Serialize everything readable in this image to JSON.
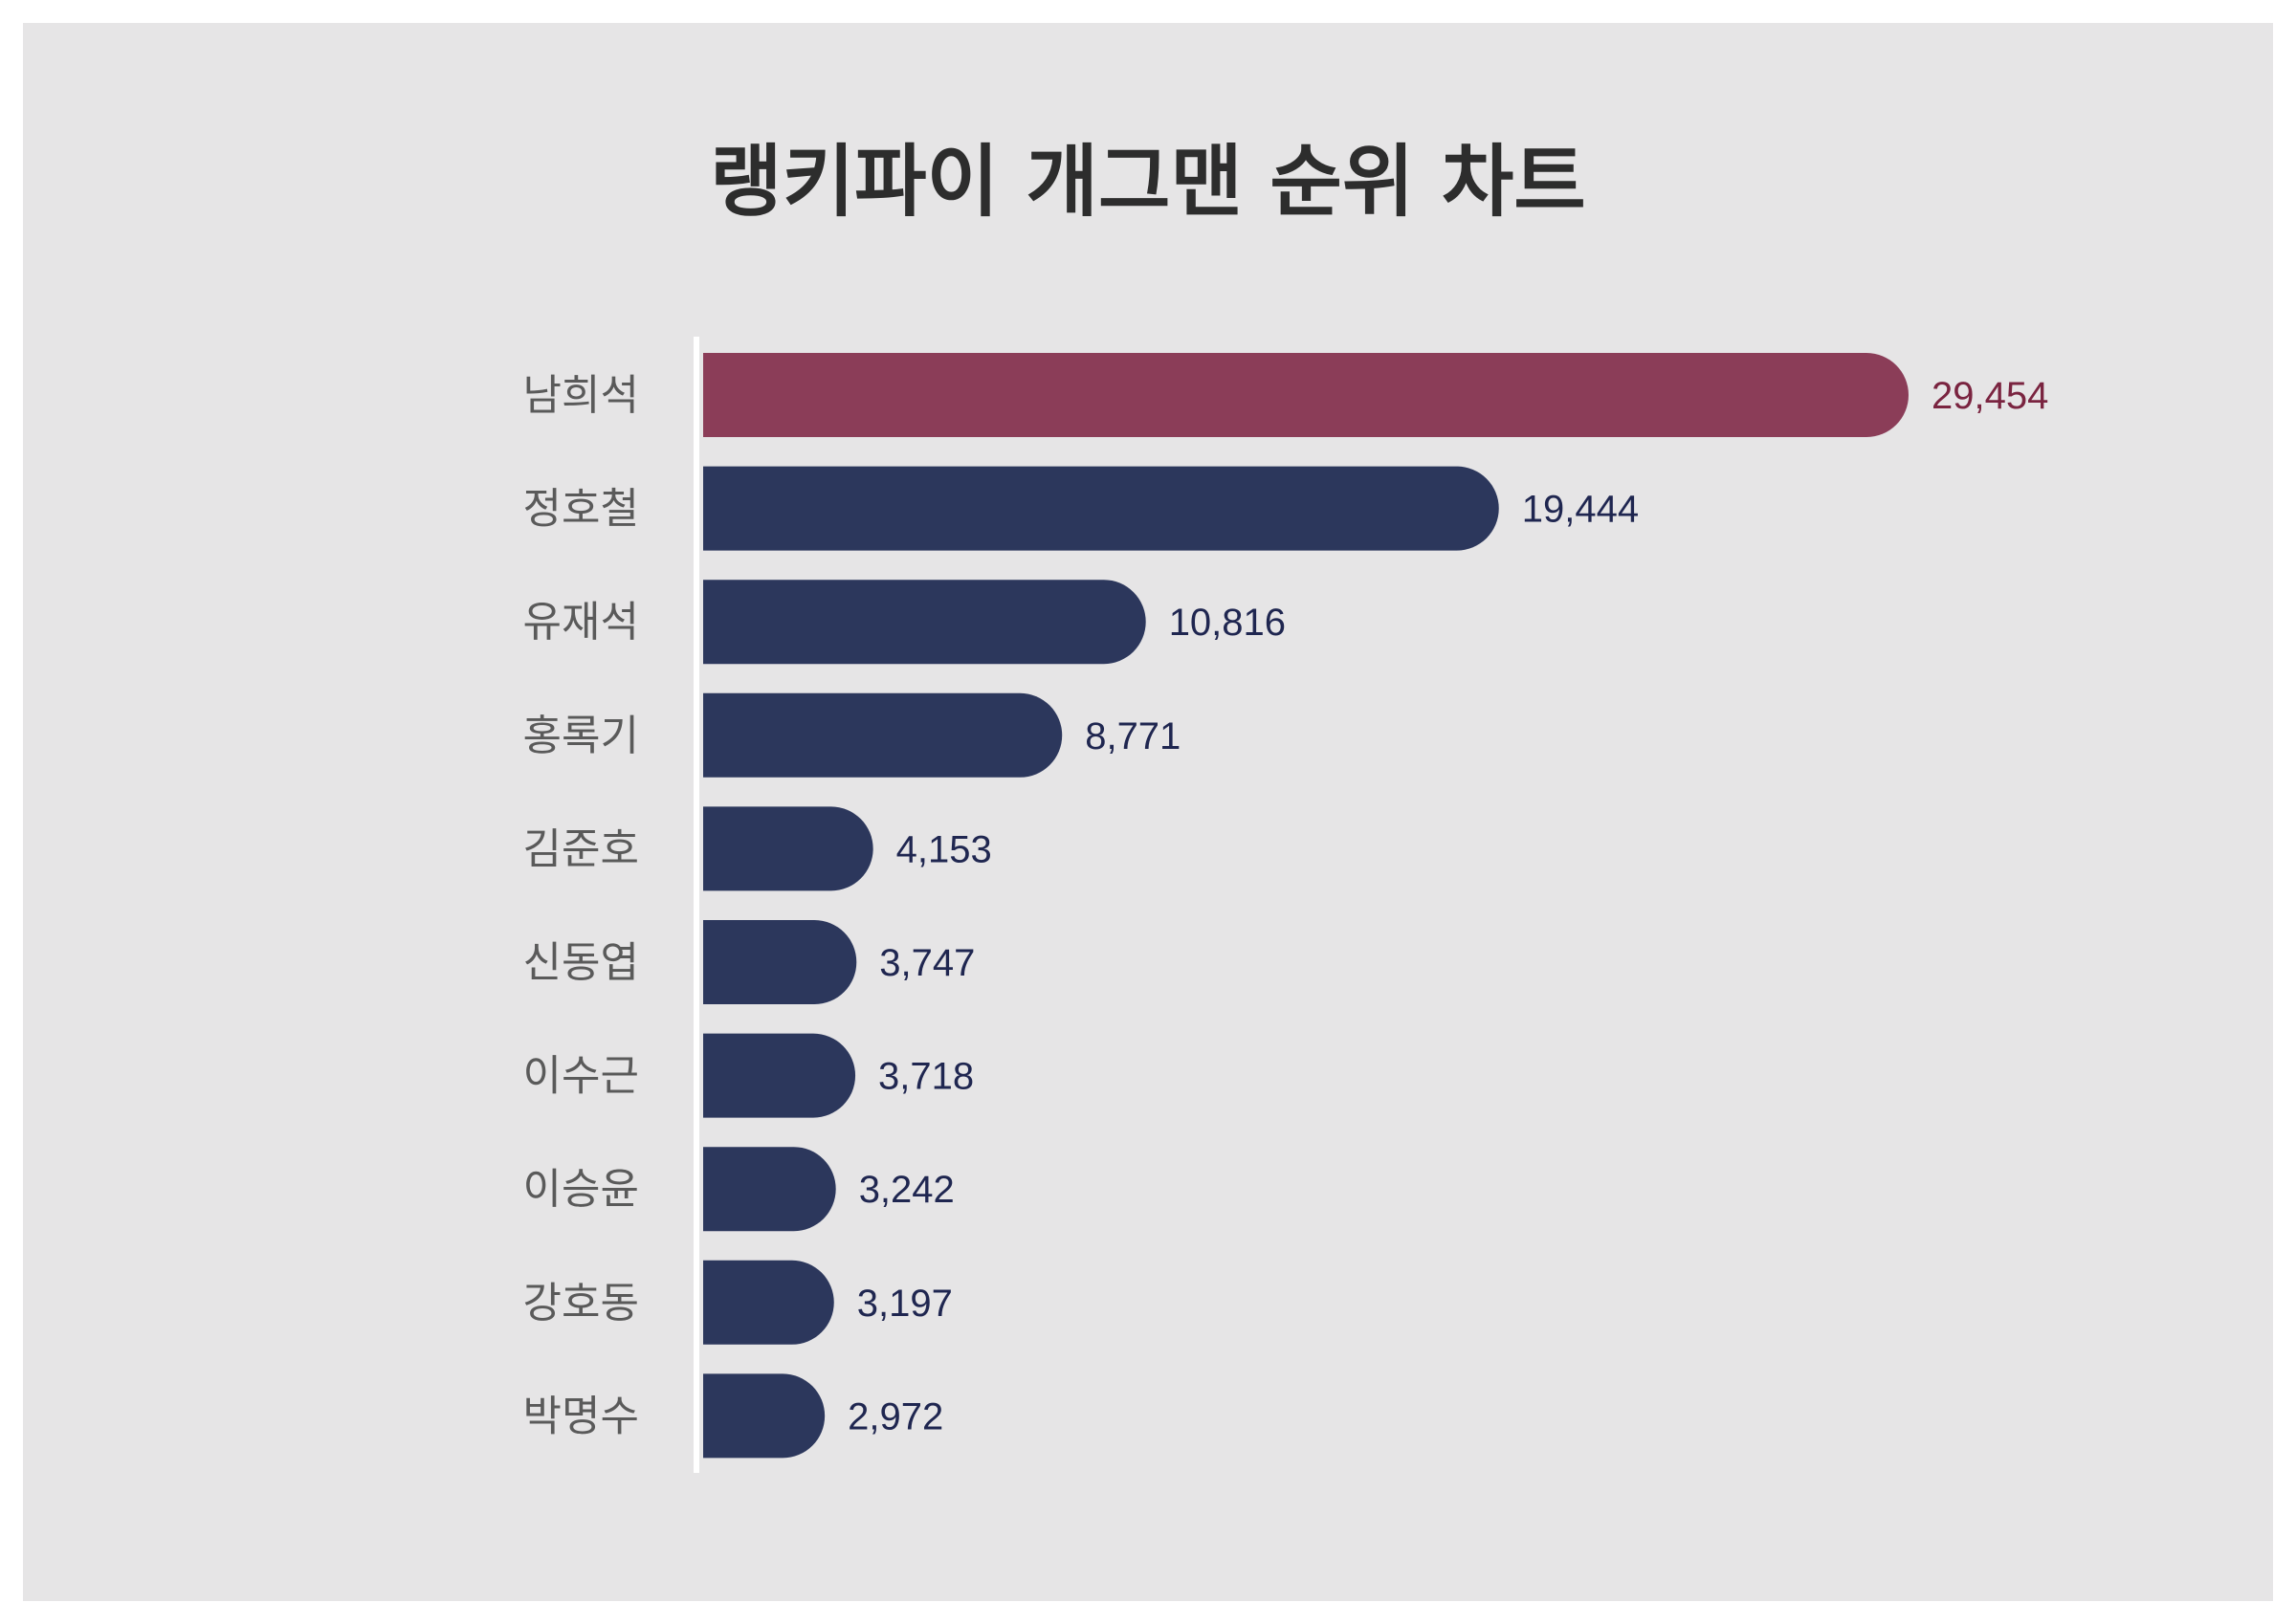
{
  "chart_data": {
    "type": "bar",
    "orientation": "horizontal",
    "title": "랭키파이 개그맨 순위 차트",
    "categories": [
      "남희석",
      "정호철",
      "유재석",
      "홍록기",
      "김준호",
      "신동엽",
      "이수근",
      "이승윤",
      "강호동",
      "박명수"
    ],
    "values": [
      29454,
      19444,
      10816,
      8771,
      4153,
      3747,
      3718,
      3242,
      3197,
      2972
    ],
    "value_labels": [
      "29,454",
      "19,444",
      "10,816",
      "8,771",
      "4,153",
      "3,747",
      "3,718",
      "3,242",
      "3,197",
      "2,972"
    ],
    "xlim": [
      0,
      29454
    ],
    "grid": false,
    "legend": "none",
    "colors": {
      "highlight": "#8b3d58",
      "bar": "#2c375c",
      "highlight_label": "#7a2440",
      "label": "#1f2650",
      "background": "#e6e5e6",
      "axis": "#ffffff"
    }
  }
}
